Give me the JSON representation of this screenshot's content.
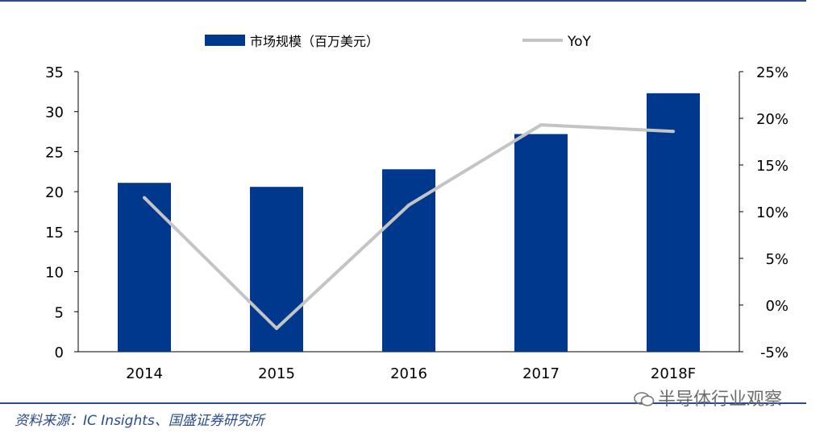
{
  "chart_data": {
    "type": "bar",
    "categories": [
      "2014",
      "2015",
      "2016",
      "2017",
      "2018F"
    ],
    "series": [
      {
        "name": "市场规模（百万美元）",
        "type": "bar",
        "axis": "left",
        "values": [
          21.1,
          20.6,
          22.8,
          27.2,
          32.3
        ]
      },
      {
        "name": "YoY",
        "type": "line",
        "axis": "right",
        "values": [
          11.5,
          -2.5,
          10.7,
          19.3,
          18.6
        ]
      }
    ],
    "y_left": {
      "min": 0,
      "max": 35,
      "ticks": [
        "0",
        "5",
        "10",
        "15",
        "20",
        "25",
        "30",
        "35"
      ]
    },
    "y_right": {
      "min": -5,
      "max": 25,
      "ticks": [
        "-5%",
        "0%",
        "5%",
        "10%",
        "15%",
        "20%",
        "25%"
      ]
    },
    "legend_position": "top",
    "colors": {
      "bar": "#00388e",
      "line": "#c4c4c4",
      "rule": "#2a4b8d"
    }
  },
  "source_text": "资料来源：IC Insights、国盛证券研究所",
  "watermark_text": "半导体行业观察"
}
